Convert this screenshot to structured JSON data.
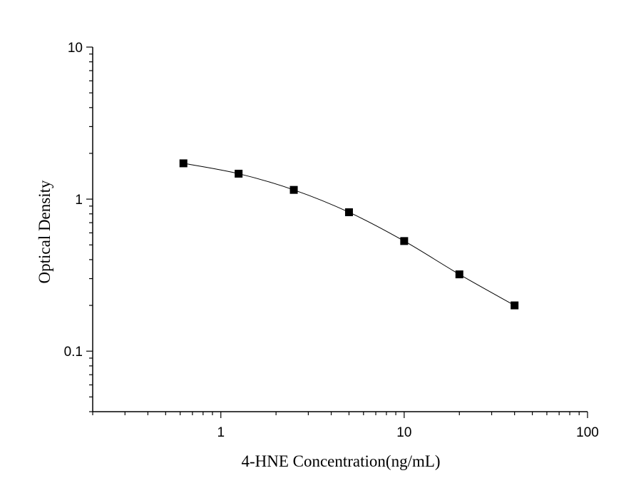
{
  "chart_data": {
    "type": "line",
    "xlabel": "4-HNE Concentration(ng/mL)",
    "ylabel": "Optical Density",
    "x_scale": "log",
    "y_scale": "log",
    "xlim": [
      0.2,
      100
    ],
    "ylim": [
      0.04,
      10
    ],
    "x_ticks": [
      {
        "value": 1,
        "label": "1"
      },
      {
        "value": 10,
        "label": "10"
      },
      {
        "value": 100,
        "label": "100"
      }
    ],
    "y_ticks": [
      {
        "value": 0.1,
        "label": "0.1"
      },
      {
        "value": 1,
        "label": "1"
      },
      {
        "value": 10,
        "label": "10"
      }
    ],
    "grid": false,
    "series": [
      {
        "marker": "square",
        "color": "#000000",
        "x": [
          0.625,
          1.25,
          2.5,
          5,
          10,
          20,
          40
        ],
        "y": [
          1.72,
          1.47,
          1.15,
          0.82,
          0.53,
          0.32,
          0.2
        ]
      }
    ]
  }
}
